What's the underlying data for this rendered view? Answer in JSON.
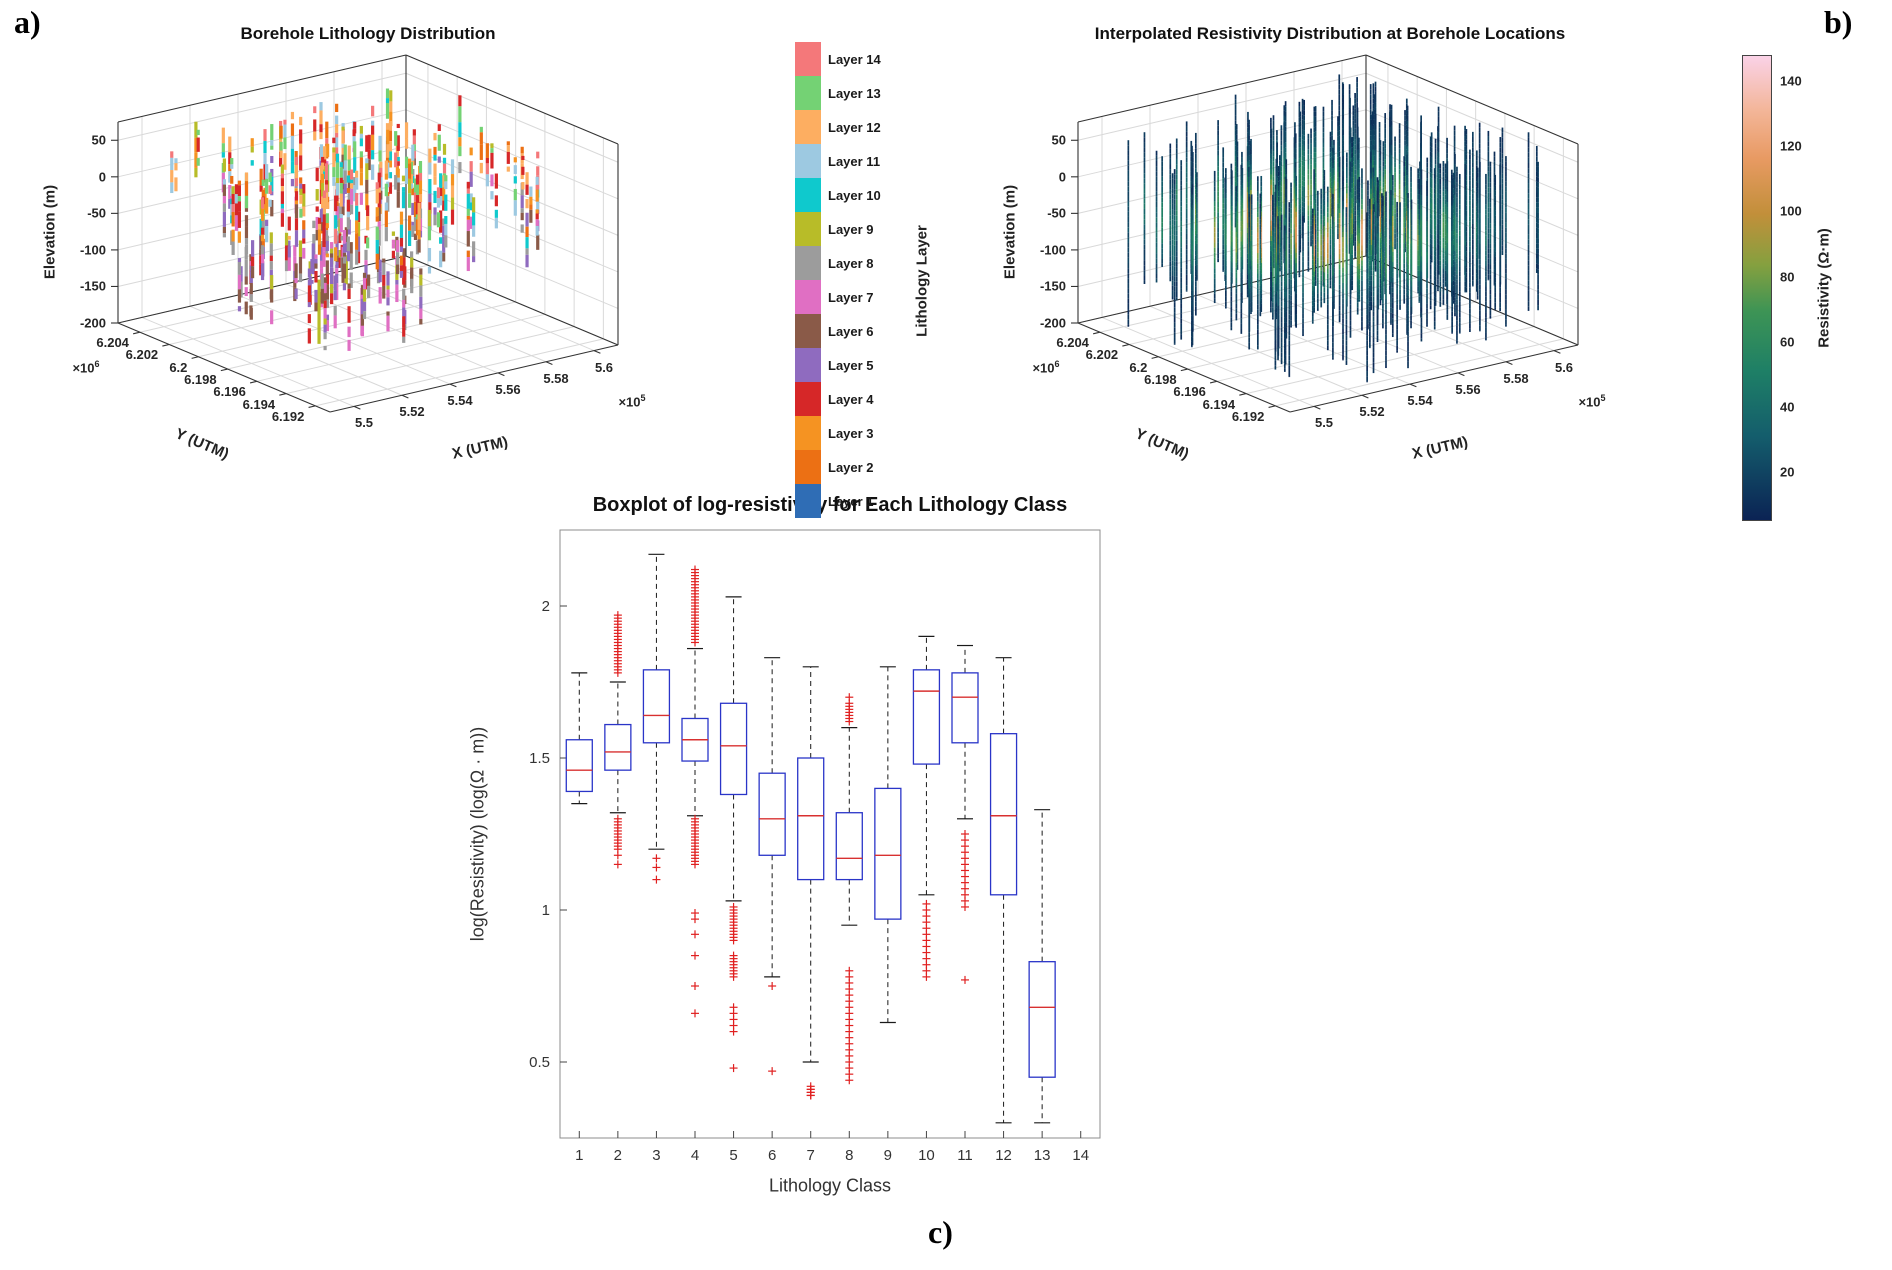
{
  "figure": {
    "panel_labels": {
      "a": "a)",
      "b": "b)",
      "c": "c)"
    }
  },
  "chart_data": [
    {
      "id": "panel_a",
      "type": "scatter",
      "subtype": "3d-borehole-lithology-columns",
      "title": "Borehole Lithology Distribution",
      "xlabel": "X (UTM)",
      "ylabel": "Y (UTM)",
      "zlabel": "Elevation (m)",
      "x_ticks": [
        "5.5",
        "5.52",
        "5.54",
        "5.56",
        "5.58",
        "5.6"
      ],
      "x_exponent": {
        "base": "×10",
        "exp": "5"
      },
      "y_ticks": [
        "6.204",
        "6.202",
        "6.2",
        "6.198",
        "6.196",
        "6.194",
        "6.192"
      ],
      "y_exponent": {
        "base": "×10",
        "exp": "6"
      },
      "z_ticks": [
        "50",
        "0",
        "-50",
        "-100",
        "-150",
        "-200"
      ],
      "xlim": [
        5.49,
        5.61
      ],
      "ylim": [
        6.191,
        6.2055
      ],
      "zlim": [
        -200,
        75
      ],
      "grid": true,
      "legend": {
        "title": "Lithology Layer",
        "entries": [
          {
            "n": 14,
            "label": "Layer 14",
            "color": "#f4787a"
          },
          {
            "n": 13,
            "label": "Layer 13",
            "color": "#74d274"
          },
          {
            "n": 12,
            "label": "Layer 12",
            "color": "#fdae61"
          },
          {
            "n": 11,
            "label": "Layer 11",
            "color": "#9dc9e1"
          },
          {
            "n": 10,
            "label": "Layer 10",
            "color": "#0fc9cd"
          },
          {
            "n": 9,
            "label": "Layer 9",
            "color": "#b8bc28"
          },
          {
            "n": 8,
            "label": "Layer 8",
            "color": "#9c9c9c"
          },
          {
            "n": 7,
            "label": "Layer 7",
            "color": "#e06fc3"
          },
          {
            "n": 6,
            "label": "Layer 6",
            "color": "#8a5a48"
          },
          {
            "n": 5,
            "label": "Layer 5",
            "color": "#8f6bbf"
          },
          {
            "n": 4,
            "label": "Layer 4",
            "color": "#d62728"
          },
          {
            "n": 3,
            "label": "Layer 3",
            "color": "#f59322"
          },
          {
            "n": 2,
            "label": "Layer 2",
            "color": "#ec7014"
          },
          {
            "n": 1,
            "label": "Layer 1",
            "color": "#2f6db5"
          }
        ]
      },
      "procedural": {
        "seed": 9,
        "n_boreholes": 115,
        "n_cluster": 55
      }
    },
    {
      "id": "panel_b",
      "type": "scatter",
      "subtype": "3d-resistivity-columns",
      "title": "Interpolated Resistivity Distribution at Borehole Locations",
      "xlabel": "X (UTM)",
      "ylabel": "Y (UTM)",
      "zlabel": "Elevation (m)",
      "x_ticks": [
        "5.5",
        "5.52",
        "5.54",
        "5.56",
        "5.58",
        "5.6"
      ],
      "x_exponent": {
        "base": "×10",
        "exp": "5"
      },
      "y_ticks": [
        "6.204",
        "6.202",
        "6.2",
        "6.198",
        "6.196",
        "6.194",
        "6.192"
      ],
      "y_exponent": {
        "base": "×10",
        "exp": "6"
      },
      "z_ticks": [
        "50",
        "0",
        "-50",
        "-100",
        "-150",
        "-200"
      ],
      "xlim": [
        5.49,
        5.61
      ],
      "ylim": [
        6.191,
        6.2055
      ],
      "zlim": [
        -200,
        75
      ],
      "grid": true,
      "colorbar": {
        "title": "Resistivity (Ω·m)",
        "ticks": [
          "140",
          "120",
          "100",
          "80",
          "60",
          "40",
          "20"
        ],
        "range": [
          5,
          148
        ],
        "gradient": [
          {
            "t": 0.0,
            "c": "#0b2354"
          },
          {
            "t": 0.18,
            "c": "#145d6c"
          },
          {
            "t": 0.32,
            "c": "#1e7f66"
          },
          {
            "t": 0.45,
            "c": "#3d9455"
          },
          {
            "t": 0.55,
            "c": "#85a03f"
          },
          {
            "t": 0.66,
            "c": "#c28f3a"
          },
          {
            "t": 0.78,
            "c": "#e89a63"
          },
          {
            "t": 0.88,
            "c": "#f3b597"
          },
          {
            "t": 1.0,
            "c": "#fad2e7"
          }
        ]
      },
      "procedural": {
        "seed": 13,
        "n_boreholes": 210
      }
    },
    {
      "id": "panel_c",
      "type": "boxplot",
      "title": "Boxplot of log-resistivity for Each Lithology Class",
      "xlabel": "Lithology Class",
      "ylabel": "log(Resistivity) (log(Ω · m))",
      "categories": [
        "1",
        "2",
        "3",
        "4",
        "5",
        "6",
        "7",
        "8",
        "9",
        "10",
        "11",
        "12",
        "13",
        "14"
      ],
      "y_ticks": [
        "0.5",
        "1",
        "1.5",
        "2"
      ],
      "ylim": [
        0.25,
        2.25
      ],
      "colors": {
        "box": "#2a35c8",
        "median": "#d83030",
        "whisker": "#1a1a1a",
        "outlier": "#e02020"
      },
      "boxes": [
        {
          "lo": 1.35,
          "q1": 1.39,
          "med": 1.46,
          "q3": 1.56,
          "hi": 1.78,
          "out": []
        },
        {
          "lo": 1.32,
          "q1": 1.46,
          "med": 1.52,
          "q3": 1.61,
          "hi": 1.75,
          "out": [
            1.97,
            1.96,
            1.95,
            1.94,
            1.93,
            1.92,
            1.91,
            1.9,
            1.89,
            1.88,
            1.87,
            1.86,
            1.85,
            1.84,
            1.83,
            1.82,
            1.81,
            1.8,
            1.79,
            1.78,
            1.3,
            1.29,
            1.28,
            1.27,
            1.26,
            1.25,
            1.24,
            1.23,
            1.22,
            1.21,
            1.2,
            1.18,
            1.15
          ]
        },
        {
          "lo": 1.2,
          "q1": 1.55,
          "med": 1.64,
          "q3": 1.79,
          "hi": 2.17,
          "out": [
            1.17,
            1.14,
            1.1
          ]
        },
        {
          "lo": 1.31,
          "q1": 1.49,
          "med": 1.56,
          "q3": 1.63,
          "hi": 1.86,
          "out": [
            2.12,
            2.11,
            2.1,
            2.09,
            2.08,
            2.07,
            2.06,
            2.05,
            2.04,
            2.03,
            2.02,
            2.01,
            2.0,
            1.99,
            1.98,
            1.97,
            1.96,
            1.95,
            1.94,
            1.93,
            1.92,
            1.91,
            1.9,
            1.89,
            1.88,
            1.3,
            1.29,
            1.28,
            1.27,
            1.26,
            1.25,
            1.24,
            1.23,
            1.22,
            1.21,
            1.2,
            1.19,
            1.18,
            1.17,
            1.16,
            1.15,
            0.99,
            0.97,
            0.92,
            0.85,
            0.75,
            0.66
          ]
        },
        {
          "lo": 1.03,
          "q1": 1.38,
          "med": 1.54,
          "q3": 1.68,
          "hi": 2.03,
          "out": [
            1.01,
            1.0,
            0.99,
            0.98,
            0.97,
            0.96,
            0.95,
            0.94,
            0.93,
            0.92,
            0.91,
            0.9,
            0.85,
            0.84,
            0.83,
            0.82,
            0.81,
            0.8,
            0.79,
            0.78,
            0.68,
            0.66,
            0.64,
            0.62,
            0.6,
            0.48
          ]
        },
        {
          "lo": 0.78,
          "q1": 1.18,
          "med": 1.3,
          "q3": 1.45,
          "hi": 1.83,
          "out": [
            0.75,
            0.47
          ]
        },
        {
          "lo": 0.5,
          "q1": 1.1,
          "med": 1.31,
          "q3": 1.5,
          "hi": 1.8,
          "out": [
            0.42,
            0.41,
            0.41,
            0.4,
            0.4,
            0.39,
            0.39
          ]
        },
        {
          "lo": 0.95,
          "q1": 1.1,
          "med": 1.17,
          "q3": 1.32,
          "hi": 1.6,
          "out": [
            1.7,
            1.68,
            1.67,
            1.66,
            1.65,
            1.64,
            1.63,
            1.62,
            0.8,
            0.78,
            0.76,
            0.74,
            0.72,
            0.7,
            0.68,
            0.66,
            0.64,
            0.62,
            0.6,
            0.58,
            0.56,
            0.54,
            0.52,
            0.5,
            0.48,
            0.46,
            0.44
          ]
        },
        {
          "lo": 0.63,
          "q1": 0.97,
          "med": 1.18,
          "q3": 1.4,
          "hi": 1.8,
          "out": []
        },
        {
          "lo": 1.05,
          "q1": 1.48,
          "med": 1.72,
          "q3": 1.79,
          "hi": 1.9,
          "out": [
            1.02,
            1.0,
            0.98,
            0.96,
            0.94,
            0.92,
            0.9,
            0.88,
            0.86,
            0.84,
            0.82,
            0.8,
            0.78
          ]
        },
        {
          "lo": 1.3,
          "q1": 1.55,
          "med": 1.7,
          "q3": 1.78,
          "hi": 1.87,
          "out": [
            1.25,
            1.23,
            1.21,
            1.19,
            1.17,
            1.15,
            1.13,
            1.11,
            1.09,
            1.07,
            1.05,
            1.03,
            1.01,
            0.77
          ]
        },
        {
          "lo": 0.3,
          "q1": 1.05,
          "med": 1.31,
          "q3": 1.58,
          "hi": 1.83,
          "out": []
        },
        {
          "lo": 0.3,
          "q1": 0.45,
          "med": 0.68,
          "q3": 0.83,
          "hi": 1.33,
          "out": []
        },
        null
      ]
    }
  ]
}
